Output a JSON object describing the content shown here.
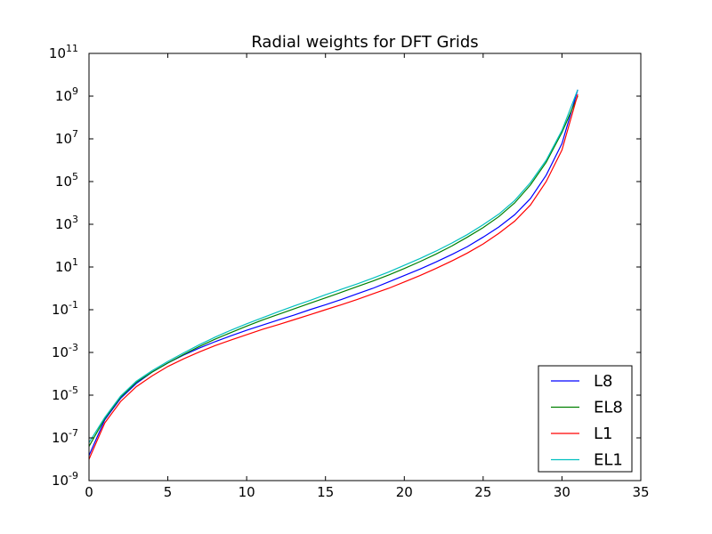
{
  "chart_data": {
    "type": "line",
    "title": "Radial weights for DFT Grids",
    "xlabel": "",
    "ylabel": "",
    "xlim": [
      0,
      35
    ],
    "ylim": [
      1e-09,
      100000000000.0
    ],
    "yscale": "log",
    "x_ticks": [
      "0",
      "5",
      "10",
      "15",
      "20",
      "25",
      "30",
      "35"
    ],
    "y_ticks": [
      {
        "base": "10",
        "exp": "11"
      },
      {
        "base": "10",
        "exp": "9"
      },
      {
        "base": "10",
        "exp": "7"
      },
      {
        "base": "10",
        "exp": "5"
      },
      {
        "base": "10",
        "exp": "3"
      },
      {
        "base": "10",
        "exp": "1"
      },
      {
        "base": "10",
        "exp": "-1"
      },
      {
        "base": "10",
        "exp": "-3"
      },
      {
        "base": "10",
        "exp": "-5"
      },
      {
        "base": "10",
        "exp": "-7"
      },
      {
        "base": "10",
        "exp": "-9"
      }
    ],
    "legend": {
      "placement": "bottom-right"
    },
    "grid": false,
    "x": [
      0,
      1,
      2,
      3,
      4,
      5,
      6,
      7,
      8,
      9,
      10,
      11,
      12,
      13,
      14,
      15,
      16,
      17,
      18,
      19,
      20,
      21,
      22,
      23,
      24,
      25,
      26,
      27,
      28,
      29,
      30,
      31
    ],
    "series": [
      {
        "name": "L8",
        "color": "#0000ff",
        "values": [
          1.5e-08,
          7e-07,
          7e-06,
          3.5e-05,
          0.00012,
          0.00032,
          0.00075,
          0.0016,
          0.0032,
          0.006,
          0.011,
          0.019,
          0.033,
          0.056,
          0.1,
          0.17,
          0.3,
          0.55,
          1.0,
          2.0,
          4.0,
          8.0,
          17,
          38,
          90,
          250,
          750,
          2800,
          16000,
          200000,
          6000000,
          2000000000
        ]
      },
      {
        "name": "EL8",
        "color": "#008000",
        "values": [
          4e-08,
          8e-07,
          8e-06,
          4e-05,
          0.00012,
          0.00032,
          0.0008,
          0.0019,
          0.0042,
          0.0085,
          0.017,
          0.033,
          0.06,
          0.11,
          0.2,
          0.36,
          0.65,
          1.2,
          2.2,
          4.2,
          8.5,
          18,
          40,
          95,
          250,
          700,
          2300,
          10000,
          70000,
          800000,
          20000000,
          1000000000
        ]
      },
      {
        "name": "L1",
        "color": "#ff0000",
        "values": [
          1e-08,
          5e-07,
          5e-06,
          2.5e-05,
          8e-05,
          0.00022,
          0.0005,
          0.00105,
          0.0021,
          0.0038,
          0.0068,
          0.012,
          0.02,
          0.034,
          0.058,
          0.1,
          0.17,
          0.3,
          0.55,
          1.0,
          2.0,
          4.0,
          8.5,
          19,
          45,
          120,
          380,
          1400,
          8000,
          100000,
          3000000,
          1200000000
        ]
      },
      {
        "name": "EL1",
        "color": "#00bfbf",
        "values": [
          6e-08,
          9e-07,
          9e-06,
          4.5e-05,
          0.00014,
          0.00038,
          0.00095,
          0.0023,
          0.0052,
          0.011,
          0.022,
          0.042,
          0.08,
          0.15,
          0.27,
          0.5,
          0.9,
          1.6,
          3.0,
          5.8,
          12,
          25,
          55,
          130,
          330,
          950,
          3000,
          13000,
          90000,
          1000000,
          25000000,
          2000000000
        ]
      }
    ]
  }
}
